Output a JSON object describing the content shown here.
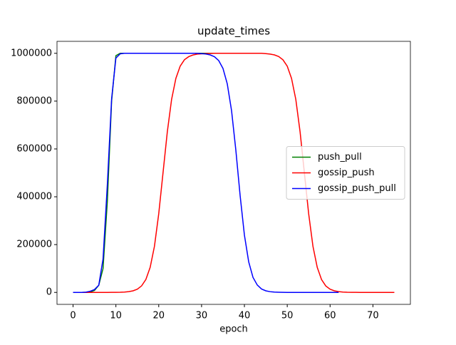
{
  "chart_data": {
    "type": "line",
    "title": "update_times",
    "xlabel": "epoch",
    "x": [
      0,
      1,
      2,
      3,
      4,
      5,
      6,
      7,
      8,
      9,
      10,
      11,
      12,
      13,
      14,
      15,
      16,
      17,
      18,
      19,
      20,
      21,
      22,
      23,
      24,
      25,
      26,
      27,
      28,
      29,
      30,
      31,
      32,
      33,
      34,
      35,
      36,
      37,
      38,
      39,
      40,
      41,
      42,
      43,
      44,
      45,
      46,
      47,
      48,
      49,
      50,
      51,
      52,
      53,
      54,
      55,
      56,
      57,
      58,
      59,
      60,
      61,
      62,
      63,
      64,
      65,
      66,
      67,
      68,
      69,
      70,
      71,
      72,
      73,
      74,
      75
    ],
    "series": [
      {
        "name": "push_pull",
        "color": "#008000",
        "values": [
          0,
          0,
          0,
          500,
          2000,
          8000,
          30000,
          100000,
          380000,
          800000,
          990000,
          1000000,
          1000000,
          1000000,
          1000000,
          1000000,
          1000000,
          1000000,
          1000000,
          1000000,
          1000000,
          1000000,
          1000000,
          1000000,
          1000000,
          1000000,
          1000000,
          1000000,
          1000000,
          1000000,
          1000000,
          1000000,
          1000000,
          1000000,
          1000000,
          1000000,
          1000000,
          1000000,
          1000000,
          1000000,
          1000000,
          null,
          null,
          null,
          null,
          null,
          null,
          null,
          null,
          null,
          null,
          null,
          null,
          null,
          null,
          null,
          null,
          null,
          null,
          null,
          null,
          null,
          null,
          null,
          null,
          null,
          null,
          null,
          null,
          null,
          null,
          null,
          null,
          null,
          null,
          null
        ]
      },
      {
        "name": "gossip_push",
        "color": "#ff0000",
        "values": [
          0,
          0,
          0,
          0,
          0,
          0,
          0,
          0,
          100,
          200,
          400,
          800,
          1600,
          3300,
          6700,
          13600,
          27400,
          54300,
          105000,
          193000,
          329000,
          500000,
          671000,
          807000,
          895000,
          946000,
          973000,
          986000,
          993000,
          996700,
          998000,
          999000,
          999500,
          1000000,
          1000000,
          1000000,
          1000000,
          1000000,
          1000000,
          1000000,
          1000000,
          1000000,
          1000000,
          1000000,
          1000000,
          998500,
          996700,
          993300,
          986500,
          972700,
          946000,
          895000,
          807000,
          671000,
          500000,
          329000,
          193000,
          105000,
          54000,
          27000,
          13600,
          6700,
          3300,
          1600,
          800,
          400,
          200,
          100,
          0,
          0,
          0,
          0,
          0,
          0,
          0,
          0
        ]
      },
      {
        "name": "gossip_push_pull",
        "color": "#0000ff",
        "values": [
          0,
          0,
          0,
          1000,
          5000,
          12000,
          30000,
          140000,
          450000,
          810000,
          980000,
          998000,
          1000000,
          1000000,
          1000000,
          1000000,
          1000000,
          1000000,
          1000000,
          1000000,
          1000000,
          1000000,
          1000000,
          1000000,
          1000000,
          1000000,
          1000000,
          1000000,
          1000000,
          1000000,
          998600,
          996900,
          993300,
          985700,
          969600,
          936500,
          872000,
          760000,
          595000,
          405000,
          240000,
          128000,
          63000,
          31000,
          14300,
          6700,
          3100,
          1400,
          700,
          300,
          0,
          0,
          0,
          0,
          0,
          0,
          0,
          0,
          0,
          0,
          0,
          0,
          0,
          null,
          null,
          null,
          null,
          null,
          null,
          null,
          null,
          null,
          null,
          null,
          null,
          null
        ]
      }
    ],
    "xlim": [
      -3.75,
      78.75
    ],
    "xticks": [
      0,
      10,
      20,
      30,
      40,
      50,
      60,
      70
    ],
    "ylim": [
      -50000,
      1050000
    ],
    "yticks": [
      0,
      200000,
      400000,
      600000,
      800000,
      1000000
    ],
    "legend": "center right"
  }
}
